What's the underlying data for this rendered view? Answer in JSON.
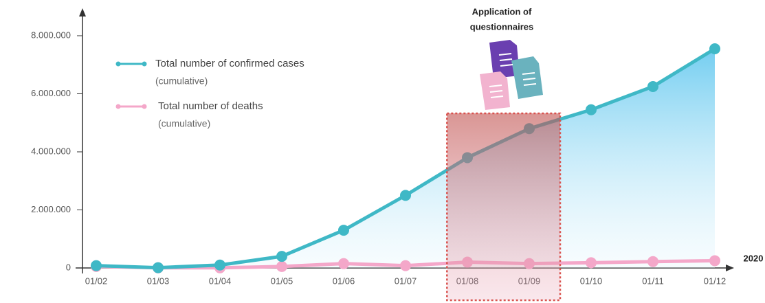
{
  "chart_data": {
    "type": "line",
    "categories": [
      "01/02",
      "01/03",
      "01/04",
      "01/05",
      "01/06",
      "01/07",
      "01/08",
      "01/09",
      "01/10",
      "01/11",
      "01/12"
    ],
    "series": [
      {
        "name": "Total number of confirmed cases",
        "subtitle": "(cumulative)",
        "color": "#3fb8c6",
        "area": true,
        "values": [
          80000,
          10000,
          100000,
          400000,
          1300000,
          2500000,
          3800000,
          4800000,
          5450000,
          6250000,
          7550000
        ]
      },
      {
        "name": "Total number of deaths",
        "subtitle": "(cumulative)",
        "color": "#f4a7c9",
        "area": false,
        "values": [
          50000,
          5000,
          5000,
          50000,
          150000,
          80000,
          200000,
          150000,
          180000,
          220000,
          250000
        ]
      }
    ],
    "x_label": "2020",
    "ylim": [
      0,
      8000000
    ],
    "yticks": [
      0,
      {
        "value": 2000000,
        "label": "2.000.000"
      },
      {
        "value": 4000000,
        "label": "4.000.000"
      },
      {
        "value": 6000000,
        "label": "6.000.000"
      },
      {
        "value": 8000000,
        "label": "8.000.000"
      }
    ],
    "annotation": {
      "text": [
        "Application of",
        "questionnaires"
      ],
      "from": 6,
      "to": 7
    }
  }
}
